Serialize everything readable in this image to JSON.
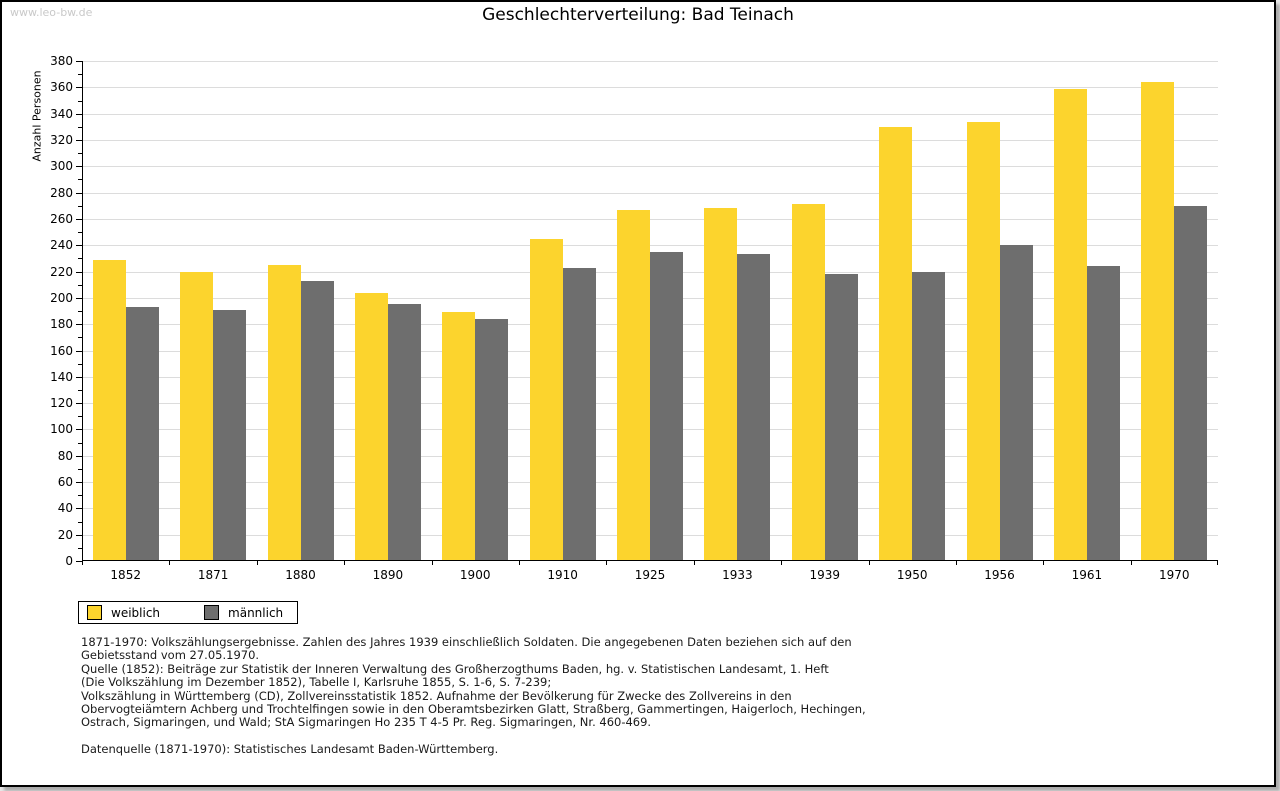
{
  "watermark": "www.leo-bw.de",
  "title": "Geschlechterverteilung: Bad Teinach",
  "chart_data": {
    "type": "bar",
    "grouped": true,
    "title": "Geschlechterverteilung: Bad Teinach",
    "xlabel": "",
    "ylabel": "Anzahl Personen",
    "ylim": [
      0,
      380
    ],
    "ytick_step": 20,
    "ytick_minor_step": 10,
    "grid": "horizontal",
    "legend_position": "bottom-left",
    "categories": [
      "1852",
      "1871",
      "1880",
      "1890",
      "1900",
      "1910",
      "1925",
      "1933",
      "1939",
      "1950",
      "1956",
      "1961",
      "1970"
    ],
    "series": [
      {
        "name": "weiblich",
        "color": "#fcd42d",
        "values": [
          229,
          220,
          225,
          204,
          189,
          245,
          267,
          268,
          271,
          330,
          334,
          359,
          364
        ]
      },
      {
        "name": "männlich",
        "color": "#6e6e6e",
        "values": [
          193,
          191,
          213,
          195,
          184,
          223,
          235,
          233,
          218,
          220,
          240,
          224,
          270
        ]
      }
    ]
  },
  "footnotes": {
    "lines": [
      "1871-1970: Volkszählungsergebnisse. Zahlen des Jahres 1939 einschließlich Soldaten. Die angegebenen Daten beziehen sich auf den",
      "Gebietsstand vom 27.05.1970.",
      "Quelle (1852): Beiträge zur Statistik der Inneren Verwaltung des Großherzogthums Baden, hg. v. Statistischen Landesamt, 1. Heft",
      "(Die Volkszählung im Dezember 1852), Tabelle I, Karlsruhe 1855, S. 1-6, S. 7-239;",
      "Volkszählung in Württemberg (CD), Zollvereinsstatistik 1852. Aufnahme der Bevölkerung für Zwecke des Zollvereins in den",
      "Obervogteiämtern Achberg und Trochtelfingen sowie in den Oberamtsbezirken Glatt, Straßberg, Gammertingen, Haigerloch, Hechingen,",
      "Ostrach, Sigmaringen, und Wald; StA Sigmaringen Ho 235 T 4-5 Pr. Reg. Sigmaringen, Nr. 460-469."
    ],
    "source": "Datenquelle (1871-1970): Statistisches Landesamt Baden-Württemberg."
  },
  "colors": {
    "grid": "#dcdcdc",
    "axis": "#000000",
    "watermark": "#c9c9c9",
    "female": "#fcd42d",
    "male": "#6e6e6e"
  }
}
